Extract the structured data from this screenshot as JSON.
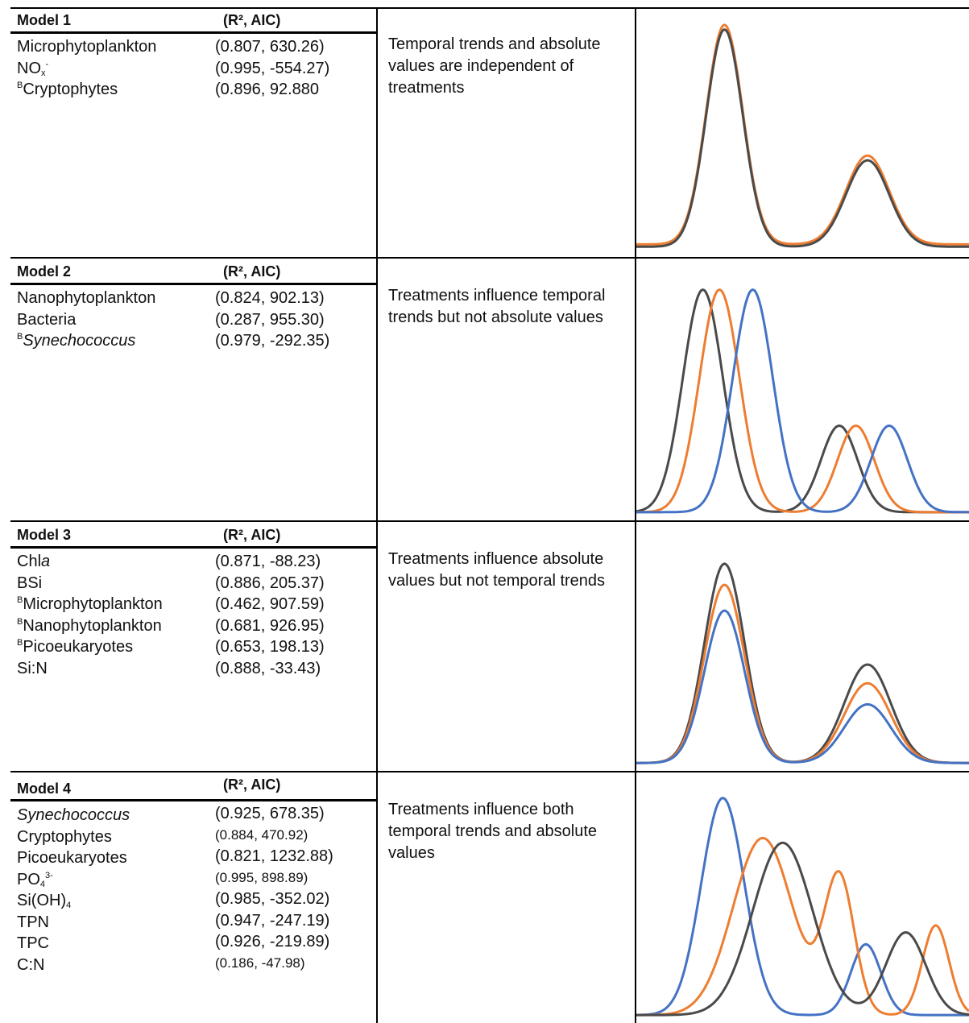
{
  "stats_header": "(R², AIC)",
  "colors": {
    "black": "#4a4a4a",
    "orange": "#ed7d31",
    "blue": "#4472c4"
  },
  "models": [
    {
      "title": "Model 1",
      "description": "Temporal trends and absolute values are independent of treatments",
      "variables": [
        {
          "label": "Microphytoplankton",
          "stats": "(0.807, 630.26)"
        },
        {
          "label": "NOx-",
          "stats": "(0.995, -554.27)"
        },
        {
          "label": "BCryptophytes",
          "stats": "(0.896, 92.880"
        }
      ]
    },
    {
      "title": "Model 2",
      "description": "Treatments influence temporal trends but not absolute values",
      "variables": [
        {
          "label": "Nanophytoplankton",
          "stats": "(0.824, 902.13)"
        },
        {
          "label": "Bacteria",
          "stats": "(0.287, 955.30)"
        },
        {
          "label": "BSynechococcus",
          "stats": "(0.979, -292.35)"
        }
      ]
    },
    {
      "title": "Model 3",
      "description": "Treatments influence absolute values but not temporal trends",
      "variables": [
        {
          "label": "Chla",
          "stats": "(0.871, -88.23)"
        },
        {
          "label": "BSi",
          "stats": "(0.886, 205.37)"
        },
        {
          "label": "BMicrophytoplankton",
          "stats": "(0.462, 907.59)"
        },
        {
          "label": "BNanophytoplankton",
          "stats": "(0.681, 926.95)"
        },
        {
          "label": "BPicoeukaryotes",
          "stats": "(0.653, 198.13)"
        },
        {
          "label": "Si:N",
          "stats": "(0.888, -33.43)"
        }
      ]
    },
    {
      "title": "Model 4",
      "description": "Treatments influence both temporal trends and absolute values",
      "variables": [
        {
          "label": "Synechococcus",
          "stats": "(0.925, 678.35)"
        },
        {
          "label": "Cryptophytes",
          "stats": "(0.884, 470.92)"
        },
        {
          "label": "Picoeukaryotes",
          "stats": "(0.821, 1232.88)"
        },
        {
          "label": "PO43-",
          "stats": "(0.995, 898.89)"
        },
        {
          "label": "Si(OH)4",
          "stats": "(0.985, -352.02)"
        },
        {
          "label": "TPN",
          "stats": "(0.947, -247.19)"
        },
        {
          "label": "TPC",
          "stats": "(0.926, -219.89)"
        },
        {
          "label": "C:N",
          "stats": "(0.186, -47.98)"
        }
      ]
    }
  ],
  "chart_data": [
    {
      "type": "line",
      "ylim": [
        0,
        1
      ],
      "series": [
        {
          "color": "orange",
          "peaks": [
            [
              0.265,
              0.055,
              0.94
            ],
            [
              0.695,
              0.065,
              0.38
            ]
          ],
          "base": 0.04
        },
        {
          "color": "black",
          "peaks": [
            [
              0.265,
              0.055,
              0.93
            ],
            [
              0.695,
              0.065,
              0.37
            ]
          ],
          "base": 0.03
        }
      ]
    },
    {
      "type": "line",
      "ylim": [
        0,
        1
      ],
      "series": [
        {
          "color": "black",
          "peaks": [
            [
              0.2,
              0.06,
              0.9
            ],
            [
              0.61,
              0.055,
              0.35
            ]
          ],
          "base": 0.02
        },
        {
          "color": "orange",
          "peaks": [
            [
              0.25,
              0.06,
              0.9
            ],
            [
              0.66,
              0.055,
              0.35
            ]
          ],
          "base": 0.02
        },
        {
          "color": "blue",
          "peaks": [
            [
              0.35,
              0.06,
              0.9
            ],
            [
              0.76,
              0.055,
              0.35
            ]
          ],
          "base": 0.02
        }
      ]
    },
    {
      "type": "line",
      "ylim": [
        0,
        1
      ],
      "series": [
        {
          "color": "black",
          "peaks": [
            [
              0.265,
              0.06,
              0.85
            ],
            [
              0.695,
              0.07,
              0.42
            ]
          ],
          "base": 0.02
        },
        {
          "color": "orange",
          "peaks": [
            [
              0.265,
              0.06,
              0.76
            ],
            [
              0.695,
              0.07,
              0.34
            ]
          ],
          "base": 0.02
        },
        {
          "color": "blue",
          "peaks": [
            [
              0.265,
              0.06,
              0.65
            ],
            [
              0.695,
              0.07,
              0.25
            ]
          ],
          "base": 0.02
        }
      ]
    },
    {
      "type": "line",
      "ylim": [
        0,
        1
      ],
      "series": [
        {
          "color": "blue",
          "peaks": [
            [
              0.26,
              0.065,
              0.92
            ],
            [
              0.69,
              0.045,
              0.3
            ]
          ],
          "base": 0.02
        },
        {
          "color": "orange",
          "peaks": [
            [
              0.38,
              0.09,
              0.75
            ],
            [
              0.61,
              0.045,
              0.58
            ],
            [
              0.9,
              0.04,
              0.38
            ]
          ],
          "base": 0.02
        },
        {
          "color": "black",
          "peaks": [
            [
              0.44,
              0.09,
              0.73
            ],
            [
              0.81,
              0.06,
              0.35
            ]
          ],
          "base": 0.02
        }
      ]
    }
  ]
}
